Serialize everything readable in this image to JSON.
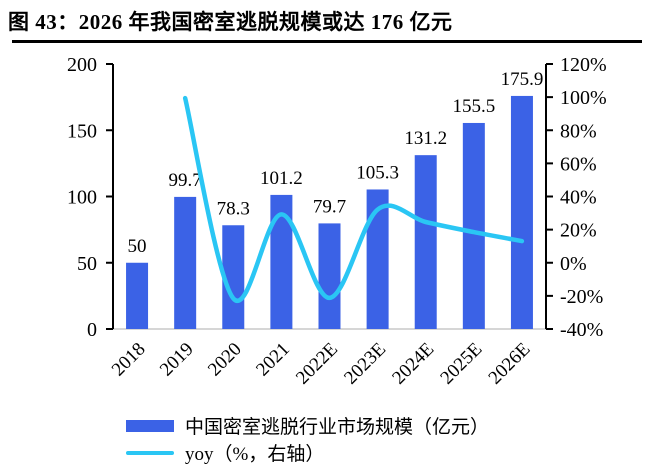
{
  "title": "图 43：2026 年我国密室逃脱规模或达 176 亿元",
  "colors": {
    "bar": "#3B62E6",
    "line": "#2AC6F4",
    "axis": "#000000",
    "baseline": "#c9c9c9",
    "text": "#000000"
  },
  "chart_data": {
    "type": "combo",
    "categories": [
      "2018",
      "2019",
      "2020",
      "2021",
      "2022E",
      "2023E",
      "2024E",
      "2025E",
      "2026E"
    ],
    "series": [
      {
        "name": "中国密室逃脱行业市场规模（亿元）",
        "type": "bar",
        "axis": "left",
        "color": "#3B62E6",
        "values": [
          50,
          99.7,
          78.3,
          101.2,
          79.7,
          105.3,
          131.2,
          155.5,
          175.9
        ],
        "labels": [
          "50",
          "99.7",
          "78.3",
          "101.2",
          "79.7",
          "105.3",
          "131.2",
          "155.5",
          "175.9"
        ]
      },
      {
        "name": "yoy（%，右轴）",
        "type": "line",
        "axis": "right",
        "color": "#2AC6F4",
        "values": [
          null,
          99.4,
          -21.5,
          29.2,
          -21.2,
          32.1,
          24.6,
          18.5,
          13.1
        ]
      }
    ],
    "left_axis": {
      "min": 0,
      "max": 200,
      "ticks": [
        0,
        50,
        100,
        150,
        200
      ]
    },
    "right_axis": {
      "min": -40,
      "max": 120,
      "ticks": [
        -40,
        -20,
        0,
        20,
        40,
        60,
        80,
        100,
        120
      ],
      "suffix": "%"
    },
    "grid": false,
    "legend_position": "bottom-left"
  }
}
